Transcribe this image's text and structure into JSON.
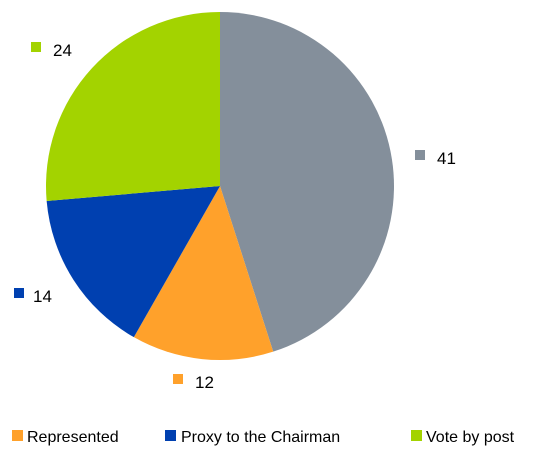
{
  "chart_data": {
    "type": "pie",
    "title": "",
    "slices": [
      {
        "name": "",
        "value": 41,
        "label": "41",
        "color": "#848f9b"
      },
      {
        "name": "Represented",
        "value": 12,
        "label": "12",
        "color": "#ffa12b"
      },
      {
        "name": "Proxy to the Chairman",
        "value": 14,
        "label": "14",
        "color": "#0040b0"
      },
      {
        "name": "Vote by post",
        "value": 24,
        "label": "24",
        "color": "#a3d300"
      }
    ],
    "legend": {
      "position": "bottom",
      "entries": [
        "Represented",
        "Proxy to the Chairman",
        "Vote by post"
      ]
    }
  }
}
